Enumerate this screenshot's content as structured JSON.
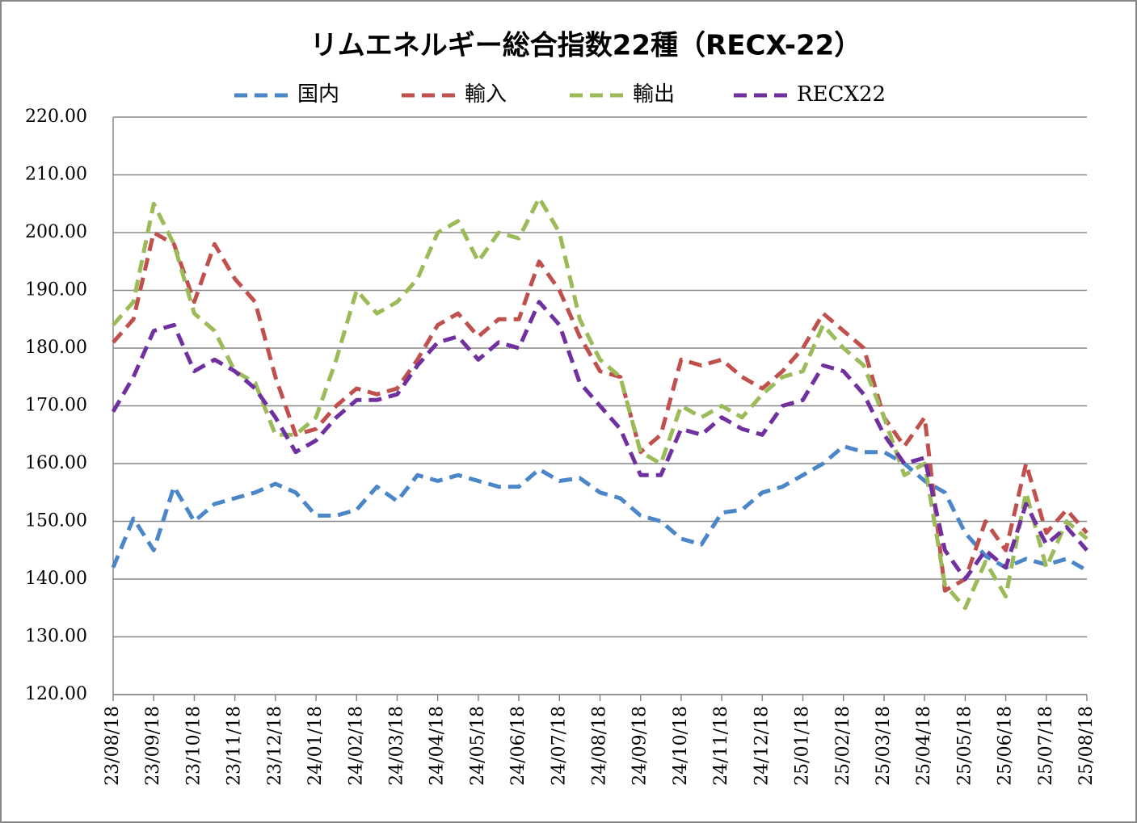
{
  "chart_data": {
    "type": "line",
    "title": "リムエネルギー総合指数22種（RECX-22）",
    "categories": [
      "23/08/18",
      null,
      "23/09/18",
      null,
      "23/10/18",
      null,
      "23/11/18",
      null,
      "23/12/18",
      null,
      "24/01/18",
      null,
      "24/02/18",
      null,
      "24/03/18",
      null,
      "24/04/18",
      null,
      "24/05/18",
      null,
      "24/06/18",
      null,
      "24/07/18",
      null,
      "24/08/18",
      null,
      "24/09/18",
      null,
      "24/10/18",
      null,
      "24/11/18",
      null,
      "24/12/18",
      null,
      "25/01/18",
      null,
      "25/02/18",
      null,
      "25/03/18",
      null,
      "25/04/18",
      null,
      "25/05/18",
      null,
      "25/06/18",
      null,
      "25/07/18",
      null,
      "25/08/18"
    ],
    "series": [
      {
        "name": "国内",
        "color": "#4a86c8",
        "values": [
          142,
          150.5,
          145,
          156,
          150,
          153,
          154,
          155,
          156.5,
          155,
          151,
          151,
          152,
          156,
          153.5,
          158,
          157,
          158,
          157,
          156,
          156,
          159,
          157,
          157.5,
          155,
          154,
          151,
          150,
          147,
          146,
          151.5,
          152,
          155,
          156,
          158,
          160,
          163,
          162,
          162,
          160,
          157,
          155,
          148,
          144,
          142,
          143.5,
          142.5,
          143.5,
          141.5
        ]
      },
      {
        "name": "輸入",
        "color": "#c0504d",
        "values": [
          181,
          185,
          200,
          198,
          188,
          198,
          192,
          188,
          175,
          165,
          166,
          170,
          173,
          172,
          173,
          178,
          184,
          186,
          182,
          185,
          185,
          195,
          190,
          182,
          176,
          175,
          162,
          165,
          178,
          177,
          178,
          175,
          173,
          176,
          180,
          186,
          183,
          180,
          168,
          163,
          168,
          138,
          140,
          150,
          145,
          160,
          148,
          152,
          148
        ]
      },
      {
        "name": "輸出",
        "color": "#9bbb59",
        "values": [
          184,
          188,
          205,
          198,
          186,
          183,
          176,
          174,
          165,
          165,
          168,
          178,
          190,
          186,
          188,
          192,
          200,
          202,
          195,
          200,
          199,
          206,
          200,
          185,
          178,
          175,
          162,
          160,
          170,
          168,
          170,
          168,
          172,
          175,
          176,
          184,
          180,
          177,
          168,
          158,
          160,
          139,
          135,
          143,
          137,
          155,
          142,
          150,
          147
        ]
      },
      {
        "name": "RECX22",
        "color": "#7030a0",
        "values": [
          169,
          175,
          183,
          184,
          176,
          178,
          176,
          173,
          168,
          162,
          164,
          168,
          171,
          171,
          172,
          177,
          181,
          182,
          178,
          181,
          180,
          188,
          184,
          174,
          170,
          166,
          158,
          158,
          166,
          165,
          168,
          166,
          165,
          170,
          171,
          177,
          176,
          172,
          165,
          160,
          161,
          145,
          140,
          145,
          142,
          153,
          146,
          149,
          145
        ]
      }
    ],
    "ylim": [
      120,
      220
    ],
    "yticks": [
      {
        "value": 120,
        "label": "120.00"
      },
      {
        "value": 130,
        "label": "130.00"
      },
      {
        "value": 140,
        "label": "140.00"
      },
      {
        "value": 150,
        "label": "150.00"
      },
      {
        "value": 160,
        "label": "160.00"
      },
      {
        "value": 170,
        "label": "170.00"
      },
      {
        "value": 180,
        "label": "180.00"
      },
      {
        "value": 190,
        "label": "190.00"
      },
      {
        "value": 200,
        "label": "200.00"
      },
      {
        "value": 210,
        "label": "210.00"
      },
      {
        "value": 220,
        "label": "220.00"
      }
    ],
    "grid": true,
    "legend": "top"
  }
}
